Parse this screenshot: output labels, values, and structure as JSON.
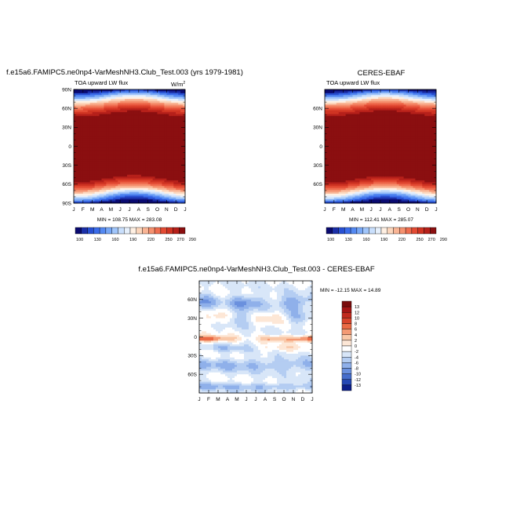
{
  "chart_data": [
    {
      "type": "heatmap",
      "id": "model",
      "title": "f.e15a6.FAMIPC5.ne0np4-VarMeshNH3.Club_Test.003 (yrs 1979-1981)",
      "left_label": "TOA upward LW flux",
      "units_base": "W/m",
      "units_exp": "2",
      "stats": "MIN = 108.75 MAX = 283.08",
      "x_ticks": [
        "J",
        "F",
        "M",
        "A",
        "M",
        "J",
        "J",
        "A",
        "S",
        "O",
        "N",
        "D",
        "J"
      ],
      "y_ticks": [
        "90N",
        "60N",
        "30N",
        "0",
        "30S",
        "60S",
        "90S"
      ],
      "y_values": [
        90,
        60,
        30,
        0,
        -30,
        -60,
        -90
      ],
      "ylim": [
        -90,
        90
      ],
      "x_months": 12,
      "field": "lw_model"
    },
    {
      "type": "heatmap",
      "id": "obs",
      "title": "CERES-EBAF",
      "left_label": "TOA upward LW flux",
      "stats": "MIN = 112.41 MAX = 285.07",
      "x_ticks": [
        "J",
        "F",
        "M",
        "A",
        "M",
        "J",
        "J",
        "A",
        "S",
        "O",
        "N",
        "D",
        "J"
      ],
      "y_ticks": [
        "60N",
        "30N",
        "0",
        "30S",
        "60S"
      ],
      "y_values": [
        60,
        30,
        0,
        -30,
        -60
      ],
      "ylim": [
        -90,
        90
      ],
      "x_months": 12,
      "field": "lw_obs"
    },
    {
      "type": "heatmap",
      "id": "diff",
      "title": "f.e15a6.FAMIPC5.ne0np4-VarMeshNH3.Club_Test.003 - CERES-EBAF",
      "stats": "MIN = -12.15 MAX =  14.89",
      "x_ticks": [
        "J",
        "F",
        "M",
        "A",
        "M",
        "J",
        "J",
        "A",
        "S",
        "O",
        "N",
        "D",
        "J"
      ],
      "y_ticks": [
        "60N",
        "30N",
        "0",
        "30S",
        "60S"
      ],
      "y_values": [
        60,
        30,
        0,
        -30,
        -60
      ],
      "ylim": [
        -90,
        90
      ],
      "x_months": 12,
      "field": "diff"
    }
  ],
  "colorbars": {
    "lw": {
      "levels": [
        100,
        110,
        120,
        130,
        140,
        150,
        160,
        170,
        180,
        190,
        200,
        210,
        220,
        230,
        240,
        250,
        260,
        270,
        280,
        290
      ],
      "labels": [
        "100",
        "130",
        "160",
        "190",
        "220",
        "250",
        "270",
        "290"
      ],
      "label_after_index": [
        0,
        3,
        6,
        9,
        12,
        15,
        17,
        19
      ],
      "colors": [
        "#0a0a70",
        "#1b2fa8",
        "#2850d2",
        "#3a6cea",
        "#5489f2",
        "#78a8f6",
        "#a0c5fa",
        "#c9dffc",
        "#e6f0fc",
        "#fff0e3",
        "#fcd6bc",
        "#f9b595",
        "#f5916f",
        "#ef6d4f",
        "#e34b34",
        "#d03423",
        "#b6201a",
        "#8b0f10"
      ]
    },
    "diff": {
      "labels": [
        "13",
        "12",
        "10",
        "8",
        "6",
        "4",
        "2",
        "0",
        "-2",
        "-4",
        "-6",
        "-8",
        "-10",
        "-12",
        "-13"
      ],
      "colors": [
        "#7a0c0c",
        "#a41515",
        "#c12a1e",
        "#d8442c",
        "#ea6a45",
        "#f49a74",
        "#f9c8a8",
        "#fde7d6",
        "#ffffff",
        "#d8e6f8",
        "#b4cdf2",
        "#8fb0ea",
        "#6a90de",
        "#456dcc",
        "#2548b4",
        "#0d1f8a"
      ]
    }
  }
}
